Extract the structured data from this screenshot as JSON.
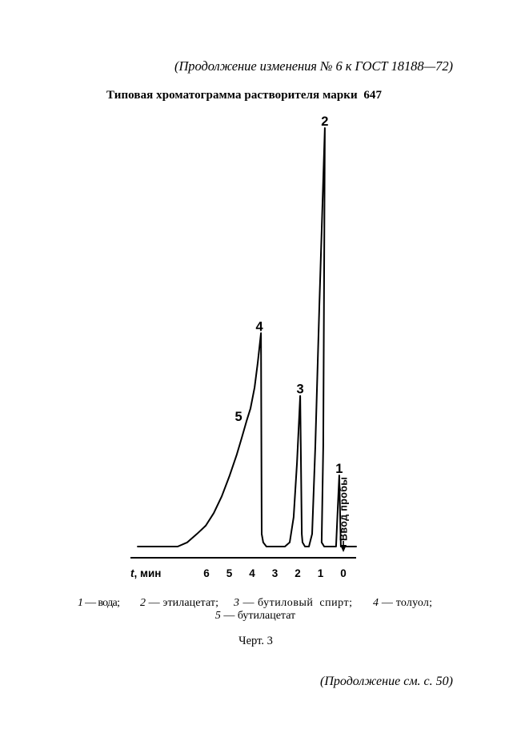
{
  "header": "(Продолжение изменения № 6 к ГОСТ 18188—72)",
  "chart_data": {
    "type": "line",
    "title": "Типовая хроматограмма растворителя марки  647",
    "xlabel": {
      "symbol": "t",
      "unit": ", мин"
    },
    "x_ticks": [
      6,
      5,
      4,
      3,
      2,
      1,
      0
    ],
    "xlim": [
      9.33,
      -0.56
    ],
    "grid": false,
    "series": [
      {
        "x": [
          9.01,
          7.26,
          6.84,
          6.42,
          6.03,
          5.68,
          5.33,
          4.98,
          4.67,
          4.45,
          4.24,
          4.07,
          3.89,
          3.75,
          3.61,
          3.58,
          3.51,
          3.37,
          3.26,
          2.56,
          2.35,
          2.18,
          2.03,
          1.89,
          1.82,
          1.79,
          1.68,
          1.51,
          1.37,
          1.23,
          1.05,
          0.81,
          0.88,
          0.95,
          0.84,
          0.32,
          0.18,
          0.11,
          -0.56
        ],
        "y": [
          0,
          0,
          0.01,
          0.03,
          0.05,
          0.08,
          0.12,
          0.17,
          0.22,
          0.26,
          0.3,
          0.33,
          0.38,
          0.44,
          0.51,
          0.03,
          0.01,
          0,
          0,
          0,
          0.01,
          0.07,
          0.2,
          0.36,
          0.03,
          0.01,
          0,
          0,
          0.03,
          0.24,
          0.58,
          1.0,
          0.24,
          0.01,
          0,
          0,
          0.17,
          0,
          0
        ]
      }
    ],
    "peaks": [
      {
        "label": "1",
        "x": 0.18,
        "y": 0.17
      },
      {
        "label": "2",
        "x": 0.81,
        "y": 1.0
      },
      {
        "label": "3",
        "x": 1.89,
        "y": 0.36
      },
      {
        "label": "4",
        "x": 3.61,
        "y": 0.51
      },
      {
        "label": "5",
        "x": 4.45,
        "y": 0.26
      }
    ],
    "annotation": {
      "label": "Ввод пробы",
      "x": 0
    }
  },
  "caption": {
    "legend": [
      {
        "num": "1",
        "text": " — вода;"
      },
      {
        "num": "2",
        "text": " — этилацетат;"
      },
      {
        "num": "3",
        "text": " — бутиловый  спирт;"
      },
      {
        "num": "4",
        "text": " — толуол;"
      },
      {
        "num": "5",
        "text": " — бутилацетат"
      }
    ],
    "figure_label": "Черт. 3"
  },
  "footer": "(Продолжение см. с. 50)"
}
